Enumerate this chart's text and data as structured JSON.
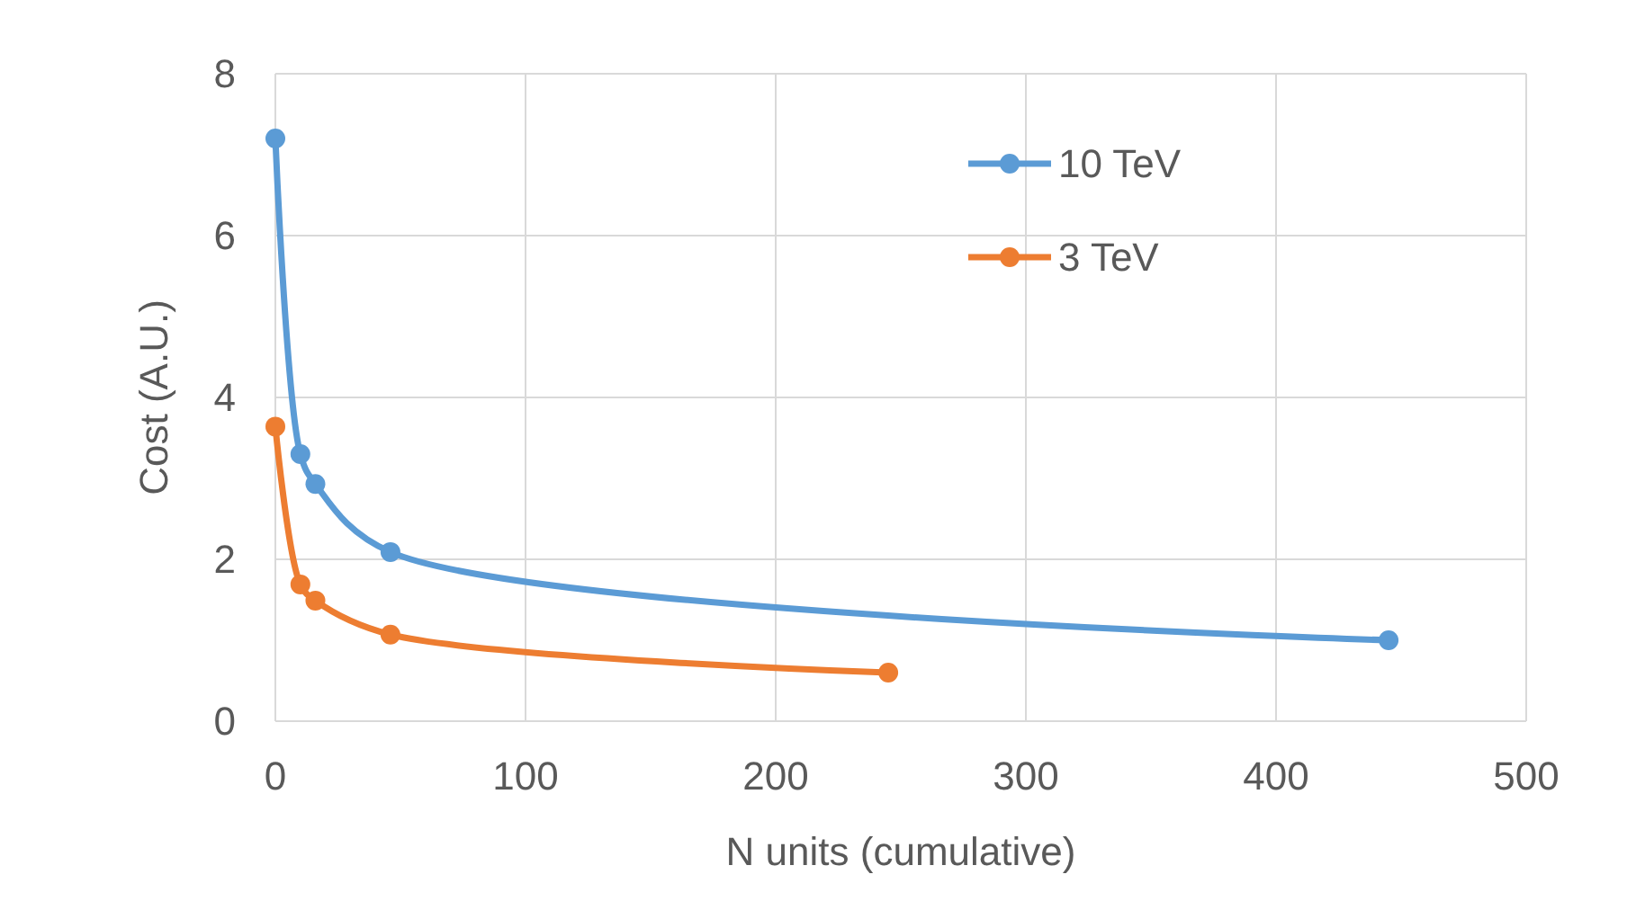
{
  "chart_data": {
    "type": "line",
    "xlabel": "N units (cumulative)",
    "ylabel": "Cost (A.U.)",
    "xlim": [
      0,
      500
    ],
    "xticks": [
      0,
      100,
      200,
      300,
      400,
      500
    ],
    "ylim": [
      0,
      8
    ],
    "yticks": [
      0,
      2,
      4,
      6,
      8
    ],
    "grid": true,
    "legend": "top right",
    "marker": "circle",
    "line_style": "solid",
    "series": [
      {
        "name": "10 TeV",
        "color": "#5b9bd5",
        "x": [
          0,
          10,
          16,
          46,
          445
        ],
        "values": [
          7.2,
          3.3,
          2.93,
          2.09,
          1.0
        ]
      },
      {
        "name": "3 TeV",
        "color": "#ed7d31",
        "x": [
          0,
          10,
          16,
          46,
          245
        ],
        "values": [
          3.64,
          1.69,
          1.49,
          1.07,
          0.6
        ]
      }
    ]
  }
}
